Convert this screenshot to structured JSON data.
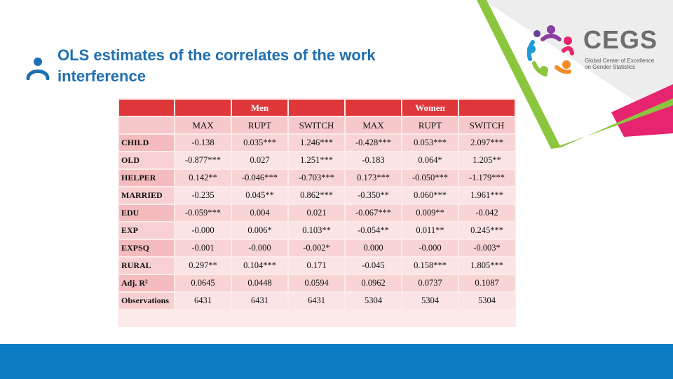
{
  "slide": {
    "title": "OLS estimates of the correlates of the work interference"
  },
  "logo": {
    "name": "CEGS",
    "subtitle_lines": [
      "Global Center of Excellence",
      "on Gender Statistics"
    ]
  },
  "colors": {
    "title": "#1f6fb2",
    "table_header": "#e0383a",
    "footer": "#0b7bc4",
    "accent_green": "#8cc63f",
    "accent_pink": "#e6246f"
  },
  "table": {
    "groups": [
      {
        "label": ""
      },
      {
        "label": ""
      },
      {
        "label": "Men"
      },
      {
        "label": ""
      },
      {
        "label": ""
      },
      {
        "label": "Women"
      },
      {
        "label": ""
      }
    ],
    "columns": [
      "",
      "MAX",
      "RUPT",
      "SWITCH",
      "MAX",
      "RUPT",
      "SWITCH"
    ],
    "rows": [
      {
        "label": "CHILD",
        "values": [
          "-0.138",
          "0.035***",
          "1.246***",
          "-0.428***",
          "0.053***",
          "2.097***"
        ]
      },
      {
        "label": "OLD",
        "values": [
          "-0.877***",
          "0.027",
          "1.251***",
          "-0.183",
          "0.064*",
          "1.205**"
        ]
      },
      {
        "label": "HELPER",
        "values": [
          "0.142**",
          "-0.046***",
          "-0.703***",
          "0.173***",
          "-0.050***",
          "-1.179***"
        ]
      },
      {
        "label": "MARRIED",
        "values": [
          "-0.235",
          "0.045**",
          "0.862***",
          "-0.350**",
          "0.060***",
          "1.961***"
        ]
      },
      {
        "label": "EDU",
        "values": [
          "-0.059***",
          "0.004",
          "0.021",
          "-0.067***",
          "0.009**",
          "-0.042"
        ]
      },
      {
        "label": "EXP",
        "values": [
          "-0.000",
          "0.006*",
          "0.103**",
          "-0.054**",
          "0.011**",
          "0.245***"
        ]
      },
      {
        "label": "EXPSQ",
        "values": [
          "-0.001",
          "-0.000",
          "-0.002*",
          "0.000",
          "-0.000",
          "-0.003*"
        ]
      },
      {
        "label": "RURAL",
        "values": [
          "0.297**",
          "0.104***",
          "0.171",
          "-0.045",
          "0.158***",
          "1.805***"
        ]
      },
      {
        "label": "Adj. R²",
        "values": [
          "0.0645",
          "0.0448",
          "0.0594",
          "0.0962",
          "0.0737",
          "0.1087"
        ]
      },
      {
        "label": "Observations",
        "values": [
          "6431",
          "6431",
          "6431",
          "5304",
          "5304",
          "5304"
        ]
      }
    ]
  }
}
